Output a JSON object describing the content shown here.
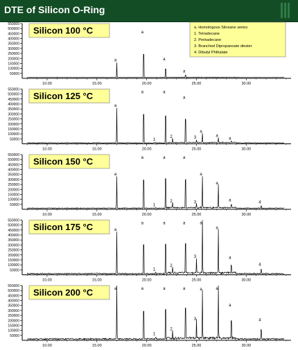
{
  "title": "DTE of Silicon O-Ring",
  "colors": {
    "title_bg": "#134d25",
    "label_bg": "#ffff99",
    "trace": "#000000"
  },
  "legend": {
    "items": [
      "a.  Homologous Siloxane series",
      "1.  Tetradecane",
      "2.  Pentadecane",
      "3.  Branched  Dipropanoate diester",
      "4.  Dibutyl Phthalate"
    ]
  },
  "chart_data": [
    {
      "type": "line",
      "title": "Silicon 100  °C",
      "ylim": [
        0,
        550000
      ],
      "xlim": [
        7.5,
        34.5
      ],
      "y_ticks": [
        50000,
        100000,
        150000,
        200000,
        250000,
        300000,
        350000,
        400000,
        450000,
        500000,
        550000
      ],
      "x_ticks": [
        10.0,
        15.0,
        20.0,
        25.0,
        30.0
      ],
      "x_tick_labels": [
        "10.00",
        "15.00",
        "20.00",
        "25.00",
        "30.00"
      ],
      "peaks": [
        {
          "x": 17.0,
          "y": 150000,
          "label": "a"
        },
        {
          "x": 19.7,
          "y": 430000,
          "label": "a"
        },
        {
          "x": 21.9,
          "y": 160000,
          "label": "a"
        },
        {
          "x": 23.9,
          "y": 40000,
          "label": "a"
        }
      ]
    },
    {
      "type": "line",
      "title": "Silicon 125  °C",
      "ylim": [
        0,
        550000
      ],
      "xlim": [
        7.5,
        34.5
      ],
      "y_ticks": [
        50000,
        100000,
        150000,
        200000,
        250000,
        300000,
        350000,
        400000,
        450000,
        500000,
        550000
      ],
      "x_ticks": [
        10.0,
        15.0,
        20.0,
        25.0,
        30.0
      ],
      "x_tick_labels": [
        "10.00",
        "15.00",
        "20.00",
        "25.00",
        "30.00"
      ],
      "peaks": [
        {
          "x": 17.0,
          "y": 350000,
          "label": "a"
        },
        {
          "x": 19.7,
          "y": 530000,
          "label": "a"
        },
        {
          "x": 20.9,
          "y": 10000,
          "label": "1"
        },
        {
          "x": 21.9,
          "y": 500000,
          "label": "a"
        },
        {
          "x": 22.6,
          "y": 40000,
          "label": "2"
        },
        {
          "x": 23.9,
          "y": 430000,
          "label": "a"
        },
        {
          "x": 25.0,
          "y": 30000,
          "label": "3"
        },
        {
          "x": 25.6,
          "y": 90000,
          "label": "a"
        },
        {
          "x": 27.2,
          "y": 50000,
          "label": "a"
        },
        {
          "x": 28.5,
          "y": 20000,
          "label": "a"
        }
      ]
    },
    {
      "type": "line",
      "title": "Silicon 150  °C",
      "ylim": [
        0,
        550000
      ],
      "xlim": [
        7.5,
        34.5
      ],
      "y_ticks": [
        50000,
        100000,
        150000,
        200000,
        250000,
        300000,
        350000,
        400000,
        450000,
        500000,
        550000
      ],
      "x_ticks": [
        10.0,
        15.0,
        20.0,
        25.0,
        30.0
      ],
      "x_tick_labels": [
        "10.00",
        "15.00",
        "20.00",
        "25.00",
        "30.00"
      ],
      "peaks": [
        {
          "x": 17.0,
          "y": 320000,
          "label": "a"
        },
        {
          "x": 19.7,
          "y": 530000,
          "label": "a"
        },
        {
          "x": 20.9,
          "y": 10000,
          "label": "1"
        },
        {
          "x": 21.9,
          "y": 550000,
          "label": "a"
        },
        {
          "x": 22.6,
          "y": 50000,
          "label": "2"
        },
        {
          "x": 23.9,
          "y": 520000,
          "label": "a"
        },
        {
          "x": 25.0,
          "y": 40000,
          "label": "3"
        },
        {
          "x": 25.6,
          "y": 320000,
          "label": "a"
        },
        {
          "x": 27.2,
          "y": 230000,
          "label": "a"
        },
        {
          "x": 28.5,
          "y": 60000,
          "label": "a"
        },
        {
          "x": 31.5,
          "y": 40000,
          "label": "4"
        }
      ]
    },
    {
      "type": "line",
      "title": "Silicon 175  °C",
      "ylim": [
        0,
        550000
      ],
      "xlim": [
        7.5,
        34.5
      ],
      "y_ticks": [
        50000,
        100000,
        150000,
        200000,
        250000,
        300000,
        350000,
        400000,
        450000,
        500000,
        550000
      ],
      "x_ticks": [
        10.0,
        15.0,
        20.0,
        25.0,
        30.0
      ],
      "x_tick_labels": [
        "10.00",
        "15.00",
        "20.00",
        "25.00",
        "30.00"
      ],
      "peaks": [
        {
          "x": 17.0,
          "y": 420000,
          "label": "a"
        },
        {
          "x": 19.7,
          "y": 540000,
          "label": "a"
        },
        {
          "x": 20.9,
          "y": 20000,
          "label": "1"
        },
        {
          "x": 21.9,
          "y": 550000,
          "label": "a"
        },
        {
          "x": 22.6,
          "y": 60000,
          "label": "2"
        },
        {
          "x": 23.9,
          "y": 550000,
          "label": "a"
        },
        {
          "x": 25.0,
          "y": 150000,
          "label": "3"
        },
        {
          "x": 25.6,
          "y": 550000,
          "label": "a"
        },
        {
          "x": 27.2,
          "y": 440000,
          "label": "a"
        },
        {
          "x": 28.5,
          "y": 140000,
          "label": "a"
        },
        {
          "x": 31.5,
          "y": 70000,
          "label": "4"
        }
      ]
    },
    {
      "type": "line",
      "title": "Silicon 200  °C",
      "ylim": [
        0,
        550000
      ],
      "xlim": [
        7.5,
        34.5
      ],
      "y_ticks": [
        50000,
        100000,
        150000,
        200000,
        250000,
        300000,
        350000,
        400000,
        450000,
        500000,
        550000
      ],
      "x_ticks": [
        10.0,
        15.0,
        20.0,
        25.0,
        30.0
      ],
      "x_tick_labels": [
        "10.00",
        "15.00",
        "20.00",
        "25.00",
        "30.00"
      ],
      "peaks": [
        {
          "x": 17.0,
          "y": 550000,
          "label": "a"
        },
        {
          "x": 19.7,
          "y": 520000,
          "label": "a"
        },
        {
          "x": 20.9,
          "y": 30000,
          "label": "1"
        },
        {
          "x": 21.9,
          "y": 550000,
          "label": "a"
        },
        {
          "x": 22.6,
          "y": 80000,
          "label": "2"
        },
        {
          "x": 23.9,
          "y": 550000,
          "label": "a"
        },
        {
          "x": 25.0,
          "y": 180000,
          "label": "3"
        },
        {
          "x": 25.6,
          "y": 480000,
          "label": "a"
        },
        {
          "x": 27.2,
          "y": 540000,
          "label": "a"
        },
        {
          "x": 28.5,
          "y": 320000,
          "label": "a"
        },
        {
          "x": 31.5,
          "y": 170000,
          "label": "4"
        }
      ]
    }
  ]
}
